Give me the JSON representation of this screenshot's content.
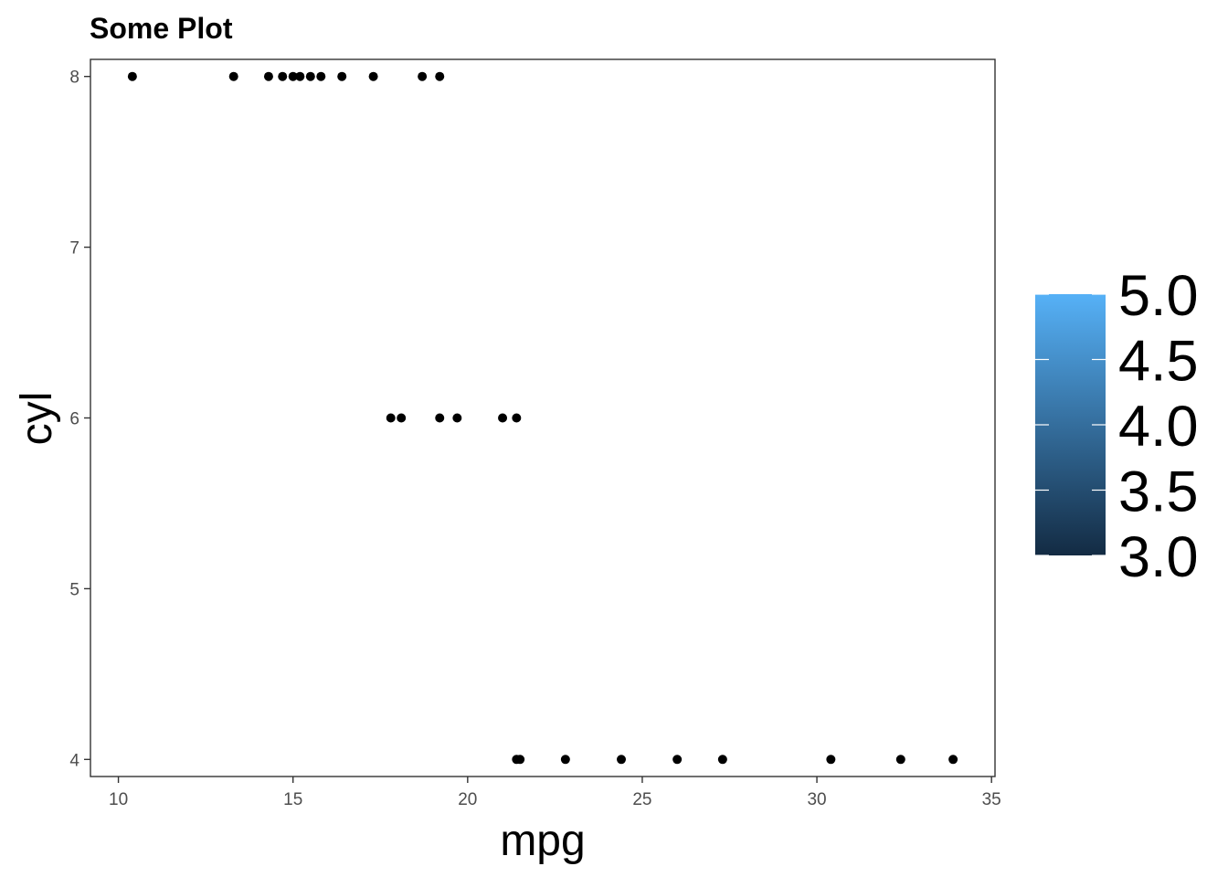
{
  "chart_data": {
    "type": "scatter",
    "title": "Some Plot",
    "xlabel": "mpg",
    "ylabel": "cyl",
    "xlim": [
      9.2,
      35.1
    ],
    "ylim": [
      3.9,
      8.1
    ],
    "xticks": [
      10,
      15,
      20,
      25,
      30,
      35
    ],
    "yticks": [
      4,
      5,
      6,
      7,
      8
    ],
    "x_tick_labels": [
      "10",
      "15",
      "20",
      "25",
      "30",
      "35"
    ],
    "y_tick_labels": [
      "4",
      "5",
      "6",
      "7",
      "8"
    ],
    "grid": false,
    "point_color": "#000000",
    "series": [
      {
        "name": "points",
        "points": [
          {
            "x": 10.4,
            "y": 8
          },
          {
            "x": 13.3,
            "y": 8
          },
          {
            "x": 14.3,
            "y": 8
          },
          {
            "x": 14.7,
            "y": 8
          },
          {
            "x": 15.0,
            "y": 8
          },
          {
            "x": 15.2,
            "y": 8
          },
          {
            "x": 15.5,
            "y": 8
          },
          {
            "x": 15.8,
            "y": 8
          },
          {
            "x": 16.4,
            "y": 8
          },
          {
            "x": 17.3,
            "y": 8
          },
          {
            "x": 18.7,
            "y": 8
          },
          {
            "x": 19.2,
            "y": 8
          },
          {
            "x": 17.8,
            "y": 6
          },
          {
            "x": 18.1,
            "y": 6
          },
          {
            "x": 19.2,
            "y": 6
          },
          {
            "x": 19.7,
            "y": 6
          },
          {
            "x": 21.0,
            "y": 6
          },
          {
            "x": 21.4,
            "y": 6
          },
          {
            "x": 21.4,
            "y": 4
          },
          {
            "x": 21.5,
            "y": 4
          },
          {
            "x": 22.8,
            "y": 4
          },
          {
            "x": 24.4,
            "y": 4
          },
          {
            "x": 26.0,
            "y": 4
          },
          {
            "x": 27.3,
            "y": 4
          },
          {
            "x": 30.4,
            "y": 4
          },
          {
            "x": 32.4,
            "y": 4
          },
          {
            "x": 33.9,
            "y": 4
          }
        ]
      }
    ],
    "legend": {
      "type": "colorbar",
      "position": "right",
      "range": [
        3.0,
        5.0
      ],
      "breaks": [
        3.0,
        3.5,
        4.0,
        4.5,
        5.0
      ],
      "labels": [
        "3.0",
        "3.5",
        "4.0",
        "4.5",
        "5.0"
      ],
      "low_color": "#132B43",
      "high_color": "#56B1F7"
    }
  }
}
